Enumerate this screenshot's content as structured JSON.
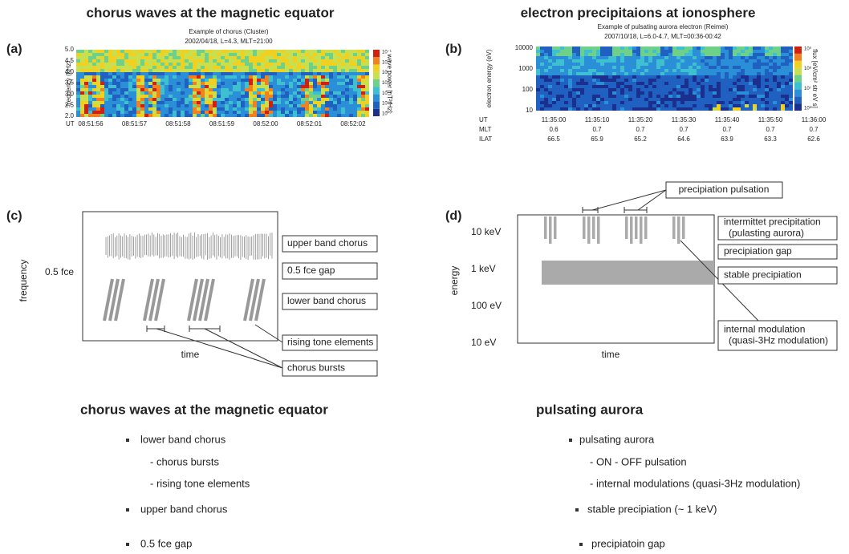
{
  "panel_a": {
    "title": "chorus waves at the magnetic equator",
    "label": "(a)",
    "subtitle": "Example of chorus (Cluster)",
    "caption": "2002/04/18, L=4.3, MLT=21:00",
    "y_label": "frequency (kHz)",
    "yticks": [
      "5.0",
      "4.5",
      "4.0",
      "3.5",
      "3.0",
      "2.5",
      "2.0"
    ],
    "x_prefix": "UT",
    "xticks": [
      "08:51:56",
      "08:51:57",
      "08:51:58",
      "08:51:59",
      "08:52:00",
      "08:52:01",
      "08:52:02"
    ],
    "colorbar_label": "wave power [nT²/Hz]",
    "colorbar_ticks": [
      "10⁻¹",
      "10⁻²",
      "10⁻³",
      "10⁻⁴",
      "10⁻⁵",
      "10⁻⁶",
      "10⁻⁷"
    ]
  },
  "panel_b": {
    "title": "electron precipitaions at ionosphere",
    "label": "(b)",
    "subtitle": "Example of pulsating aurora electron (Reimei)",
    "caption": "2007/10/18, L=6.0-4.7, MLT=00:36-00:42",
    "y_label": "electron energy (eV)",
    "yticks": [
      "10000",
      "1000",
      "100",
      "10"
    ],
    "rows": [
      {
        "name": "UT",
        "values": [
          "11:35:00",
          "11:35:10",
          "11:35:20",
          "11:35:30",
          "11:35:40",
          "11:35:50",
          "11:36:00"
        ]
      },
      {
        "name": "MLT",
        "values": [
          "0.6",
          "0.7",
          "0.7",
          "0.7",
          "0.7",
          "0.7",
          "0.7"
        ]
      },
      {
        "name": "ILAT",
        "values": [
          "66.5",
          "65.9",
          "65.2",
          "64.6",
          "63.9",
          "63.3",
          "62.6"
        ]
      }
    ],
    "colorbar_label": "flux [eV/cm² str eV s]",
    "colorbar_ticks": [
      "10⁹",
      "10⁸",
      "10⁷",
      "10⁶"
    ]
  },
  "panel_c": {
    "label": "(c)",
    "y_label": "frequency",
    "y_marker": "0.5 fce",
    "x_label": "time",
    "boxes": [
      "upper band chorus",
      "0.5 fce gap",
      "lower band chorus",
      "rising tone elements",
      "chorus bursts"
    ]
  },
  "panel_d": {
    "label": "(d)",
    "y_label": "energy",
    "yticks": [
      "10 keV",
      "1 keV",
      "100 eV",
      "10 eV"
    ],
    "x_label": "time",
    "top_box": "precipiation pulsation",
    "boxes": [
      [
        "intermittet precipitation",
        "(pulasting aurora)"
      ],
      [
        "precipiation gap"
      ],
      [
        "stable precipiation"
      ],
      [
        "internal modulation",
        "(quasi-3Hz modulation)"
      ]
    ]
  },
  "summary_left": {
    "heading": "chorus waves at the magnetic equator",
    "items": [
      "lower band chorus",
      "- chorus bursts",
      "- rising tone elements",
      "upper band chorus",
      "0.5 fce gap"
    ]
  },
  "summary_right": {
    "heading": "pulsating aurora",
    "items": [
      "pulsating aurora",
      "- ON - OFF pulsation",
      "- internal modulations (quasi-3Hz modulation)",
      "stable precipiation (~ 1 keV)",
      "precipiatoin gap"
    ]
  }
}
